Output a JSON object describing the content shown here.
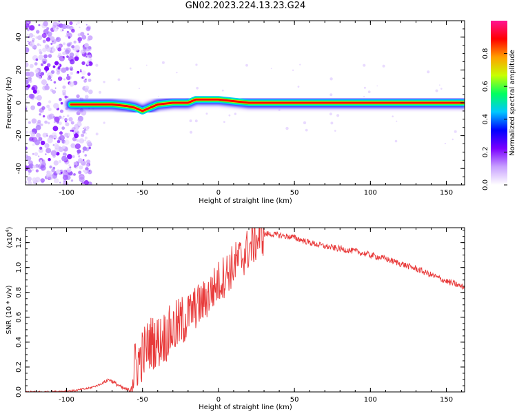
{
  "title": "GN02.2023.224.13.23.G24",
  "chart_data": [
    {
      "type": "heatmap",
      "xlabel": "Height of straight line (km)",
      "ylabel": "Frequency (Hz)",
      "xlim": [
        -127,
        162
      ],
      "ylim": [
        -50,
        50
      ],
      "xticks": [
        -100,
        -50,
        0,
        50,
        100,
        150
      ],
      "yticks": [
        -40,
        -20,
        0,
        20,
        40
      ],
      "colorbar": {
        "label": "Normalized spectral amplitude",
        "range": [
          0,
          1
        ],
        "ticks": [
          "0.0",
          "0.2",
          "0.4",
          "0.6",
          "0.8"
        ],
        "colors": [
          "#ffffff",
          "#c8a0ff",
          "#7a00ff",
          "#0000ff",
          "#00c8ff",
          "#00ff60",
          "#c8ff00",
          "#ffa000",
          "#ff0000",
          "#ff1493"
        ]
      },
      "ridge": [
        {
          "x": -97,
          "f": -1
        },
        {
          "x": -85,
          "f": -1
        },
        {
          "x": -70,
          "f": -1
        },
        {
          "x": -60,
          "f": -2
        },
        {
          "x": -55,
          "f": -3
        },
        {
          "x": -50,
          "f": -5
        },
        {
          "x": -45,
          "f": -3
        },
        {
          "x": -40,
          "f": -1
        },
        {
          "x": -30,
          "f": 0
        },
        {
          "x": -20,
          "f": 0
        },
        {
          "x": -15,
          "f": 2
        },
        {
          "x": 0,
          "f": 2
        },
        {
          "x": 10,
          "f": 1
        },
        {
          "x": 20,
          "f": 0
        },
        {
          "x": 60,
          "f": 0
        },
        {
          "x": 70,
          "f": 0
        },
        {
          "x": 100,
          "f": 0
        },
        {
          "x": 115,
          "f": 0
        },
        {
          "x": 162,
          "f": 0
        }
      ]
    },
    {
      "type": "line",
      "xlabel": "Height of straight line (km)",
      "ylabel": "SNR (10 * v/v)",
      "y_multiplier": "(x10",
      "y_exponent": "4",
      "xlim": [
        -127,
        162
      ],
      "ylim": [
        0,
        1.32
      ],
      "xticks": [
        -100,
        -50,
        0,
        50,
        100,
        150
      ],
      "yticks": [
        "0.0",
        "0.2",
        "0.4",
        "0.6",
        "0.8",
        "1.0",
        "1.2"
      ],
      "series": [
        {
          "name": "SNR",
          "color": "#e83a3a",
          "x": [
            -127,
            -110,
            -95,
            -85,
            -78,
            -72,
            -68,
            -63,
            -58,
            -55,
            -50,
            -45,
            -40,
            -35,
            -30,
            -25,
            -20,
            -15,
            -10,
            -5,
            0,
            5,
            10,
            15,
            20,
            25,
            28,
            32,
            40,
            50,
            60,
            70,
            80,
            90,
            100,
            110,
            120,
            130,
            140,
            150,
            162
          ],
          "y": [
            0.0,
            0.0,
            0.01,
            0.03,
            0.06,
            0.1,
            0.07,
            0.03,
            0.01,
            0.2,
            0.3,
            0.4,
            0.4,
            0.45,
            0.5,
            0.55,
            0.62,
            0.68,
            0.72,
            0.8,
            0.88,
            0.95,
            1.02,
            1.08,
            1.15,
            1.22,
            1.26,
            1.27,
            1.26,
            1.24,
            1.2,
            1.17,
            1.15,
            1.13,
            1.1,
            1.07,
            1.03,
            0.99,
            0.94,
            0.89,
            0.84
          ]
        }
      ]
    }
  ]
}
